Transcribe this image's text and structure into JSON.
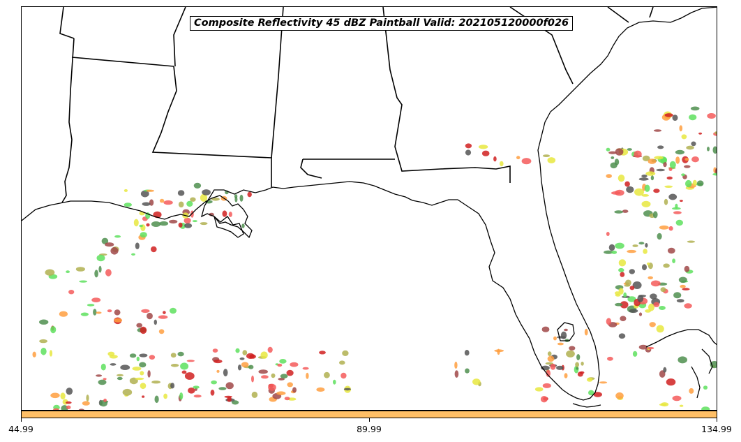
{
  "title": "Composite Reflectivity 45 dBZ Paintball Valid: 202105120000f026",
  "colorbar": {
    "color": "#ffbf66",
    "ticks": [
      "44.99",
      "89.99",
      "134.99"
    ]
  },
  "paintball_colors": [
    "#f45b5b",
    "#ff9f3f",
    "#5ee05e",
    "#4f8f4f",
    "#a04848",
    "#b0b050",
    "#e8e840",
    "#555555",
    "#d02020"
  ]
}
